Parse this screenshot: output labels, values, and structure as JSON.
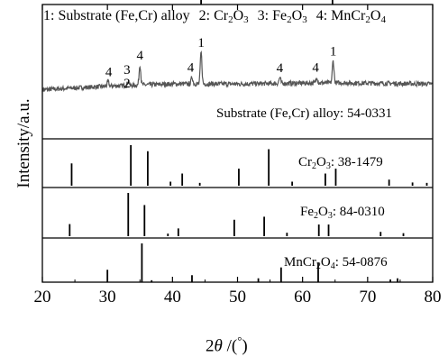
{
  "legend": {
    "items": [
      {
        "num": "1:",
        "parts": [
          {
            "t": "Substrate (Fe,Cr) alloy"
          }
        ]
      },
      {
        "num": "2:",
        "parts": [
          {
            "t": "Cr"
          },
          {
            "sub": "2"
          },
          {
            "t": "O"
          },
          {
            "sub": "3"
          }
        ]
      },
      {
        "num": "3:",
        "parts": [
          {
            "t": "Fe"
          },
          {
            "sub": "2"
          },
          {
            "t": "O"
          },
          {
            "sub": "3"
          }
        ]
      },
      {
        "num": "4:",
        "parts": [
          {
            "t": "MnCr"
          },
          {
            "sub": "2"
          },
          {
            "t": "O"
          },
          {
            "sub": "4"
          }
        ]
      }
    ]
  },
  "chart_data": {
    "type": "line",
    "xlabel": "2θ /(°)",
    "ylabel": "Intensity/a.u.",
    "xlim": [
      20,
      80
    ],
    "xticks": [
      20,
      30,
      40,
      50,
      60,
      70,
      80
    ],
    "colors": {
      "measured": "#555555",
      "sticks": "#000000",
      "axes": "#000000"
    },
    "measured_pattern": {
      "baseline": 0.07,
      "noise_amplitude": 0.05,
      "baseline_rise": [
        [
          20,
          0.0
        ],
        [
          30,
          0.06
        ],
        [
          40,
          0.1
        ],
        [
          50,
          0.1
        ],
        [
          65,
          0.12
        ],
        [
          80,
          0.1
        ]
      ],
      "peaks": [
        {
          "x": 30.1,
          "height": 0.08
        },
        {
          "x": 33.2,
          "height": 0.08
        },
        {
          "x": 35.0,
          "height": 0.35
        },
        {
          "x": 43.0,
          "height": 0.12
        },
        {
          "x": 44.4,
          "height": 0.55
        },
        {
          "x": 56.5,
          "height": 0.1
        },
        {
          "x": 62.2,
          "height": 0.1
        },
        {
          "x": 64.7,
          "height": 0.38
        }
      ],
      "peak_labels": [
        {
          "x": 30.2,
          "text": "4"
        },
        {
          "x": 33.0,
          "text": "3"
        },
        {
          "x": 33.0,
          "text": "2",
          "lower": true
        },
        {
          "x": 35.0,
          "text": "4"
        },
        {
          "x": 42.8,
          "text": "4"
        },
        {
          "x": 44.4,
          "text": "1"
        },
        {
          "x": 56.5,
          "text": "4"
        },
        {
          "x": 62.0,
          "text": "4"
        },
        {
          "x": 64.7,
          "text": "1"
        }
      ]
    },
    "references": [
      {
        "label_parts": [
          {
            "t": "Substrate (Fe,Cr) alloy: 54-0331"
          }
        ],
        "peaks": [
          [
            44.4,
            1.0
          ],
          [
            64.6,
            0.13
          ]
        ]
      },
      {
        "label_parts": [
          {
            "t": "Cr"
          },
          {
            "sub": "2"
          },
          {
            "t": "O"
          },
          {
            "sub": "3"
          },
          {
            "t": ": 38-1479"
          }
        ],
        "peaks": [
          [
            24.5,
            0.55
          ],
          [
            33.6,
            1.0
          ],
          [
            36.2,
            0.85
          ],
          [
            39.7,
            0.1
          ],
          [
            41.5,
            0.3
          ],
          [
            44.2,
            0.07
          ],
          [
            50.2,
            0.42
          ],
          [
            54.8,
            0.9
          ],
          [
            58.4,
            0.1
          ],
          [
            63.5,
            0.3
          ],
          [
            65.1,
            0.42
          ],
          [
            73.3,
            0.15
          ],
          [
            76.9,
            0.08
          ],
          [
            79.1,
            0.07
          ]
        ]
      },
      {
        "label_parts": [
          {
            "t": "Fe"
          },
          {
            "sub": "2"
          },
          {
            "t": "O"
          },
          {
            "sub": "3"
          },
          {
            "t": ": 84-0310"
          }
        ],
        "peaks": [
          [
            24.2,
            0.28
          ],
          [
            33.2,
            1.0
          ],
          [
            35.7,
            0.72
          ],
          [
            39.3,
            0.06
          ],
          [
            40.9,
            0.18
          ],
          [
            49.5,
            0.38
          ],
          [
            54.1,
            0.45
          ],
          [
            57.6,
            0.08
          ],
          [
            62.5,
            0.27
          ],
          [
            64.0,
            0.27
          ],
          [
            72.0,
            0.1
          ],
          [
            75.5,
            0.07
          ]
        ]
      },
      {
        "label_parts": [
          {
            "t": "MnCr"
          },
          {
            "sub": "2"
          },
          {
            "t": "O"
          },
          {
            "sub": "4"
          },
          {
            "t": ": 54-0876"
          }
        ],
        "peaks": [
          [
            30.0,
            0.32
          ],
          [
            35.3,
            1.0
          ],
          [
            36.8,
            0.05
          ],
          [
            43.0,
            0.18
          ],
          [
            53.2,
            0.1
          ],
          [
            56.7,
            0.38
          ],
          [
            62.4,
            0.5
          ],
          [
            73.5,
            0.07
          ],
          [
            74.6,
            0.1
          ]
        ]
      }
    ]
  }
}
